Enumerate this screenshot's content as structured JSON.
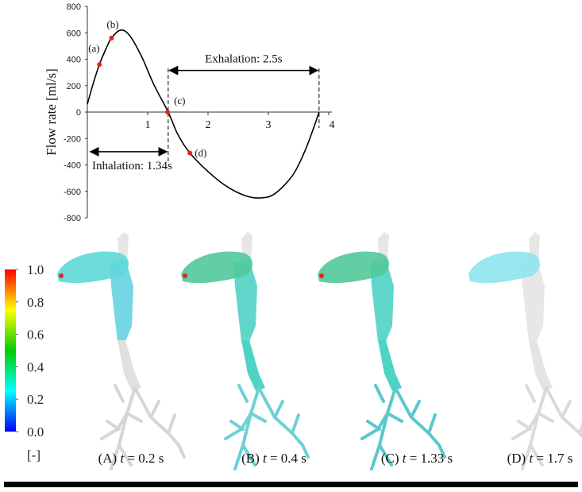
{
  "chart_data": {
    "type": "line",
    "ylabel": "Flow rate [ml/s]",
    "xlabel": "",
    "xlim": [
      0,
      4
    ],
    "ylim": [
      -800,
      800
    ],
    "x_ticks": [
      "1",
      "2",
      "3",
      "4"
    ],
    "y_ticks": [
      "800",
      "600",
      "400",
      "200",
      "0",
      "-200",
      "-400",
      "-600",
      "-800"
    ],
    "series": [
      {
        "x": [
          0,
          0.1,
          0.2,
          0.3,
          0.4,
          0.55,
          0.7,
          0.9,
          1.1,
          1.34,
          1.5,
          1.7,
          2.0,
          2.3,
          2.6,
          2.85,
          3.1,
          3.4,
          3.6,
          3.75,
          3.84
        ],
        "y": [
          60,
          220,
          360,
          470,
          560,
          620,
          580,
          420,
          210,
          0,
          -170,
          -310,
          -450,
          -560,
          -630,
          -650,
          -620,
          -480,
          -300,
          -120,
          0
        ],
        "color": "#000000"
      }
    ],
    "markers": [
      {
        "label": "(a)",
        "x": 0.2,
        "y": 360
      },
      {
        "label": "(b)",
        "x": 0.4,
        "y": 560
      },
      {
        "label": "(c)",
        "x": 1.33,
        "y": 0
      },
      {
        "label": "(d)",
        "x": 1.7,
        "y": -310
      }
    ],
    "marker_color": "#e8231a",
    "annotations": {
      "exhalation": {
        "text": "Exhalation: 2.5s",
        "from": 1.34,
        "to": 3.84
      },
      "inhalation": {
        "text": "Inhalation: 1.34s",
        "from": 0,
        "to": 1.34
      }
    }
  },
  "colorbar": {
    "ticks": [
      "1.0",
      "0.8",
      "0.6",
      "0.4",
      "0.2",
      "0.0"
    ],
    "unit": "[-]",
    "colors": [
      "#ff0000",
      "#ffff00",
      "#00cc00",
      "#00ffff",
      "#0000ff"
    ]
  },
  "panels": [
    {
      "label": "(A)",
      "t": "t",
      "value": " = 0.2 s",
      "nasal": "#5fd8d8",
      "pharynx": "#66d3e0",
      "trachea": "#e0e0e0",
      "bronchi": "#d6d6d6"
    },
    {
      "label": "(B)",
      "t": "t",
      "value": " = 0.4 s",
      "nasal": "#52c99a",
      "pharynx": "#4fd3c4",
      "trachea": "#4fd3c4",
      "bronchi": "#6fd0d6"
    },
    {
      "label": "(C)",
      "t": "t",
      "value": " = 1.33 s",
      "nasal": "#52c99a",
      "pharynx": "#4fd3c4",
      "trachea": "#4fd3c4",
      "bronchi": "#5ac8cc"
    },
    {
      "label": "(D)",
      "t": "t",
      "value": " = 1.7 s",
      "nasal": "#8fe4ee",
      "pharynx": "#e4e4e4",
      "trachea": "#e4e4e4",
      "bronchi": "#dadada"
    }
  ]
}
